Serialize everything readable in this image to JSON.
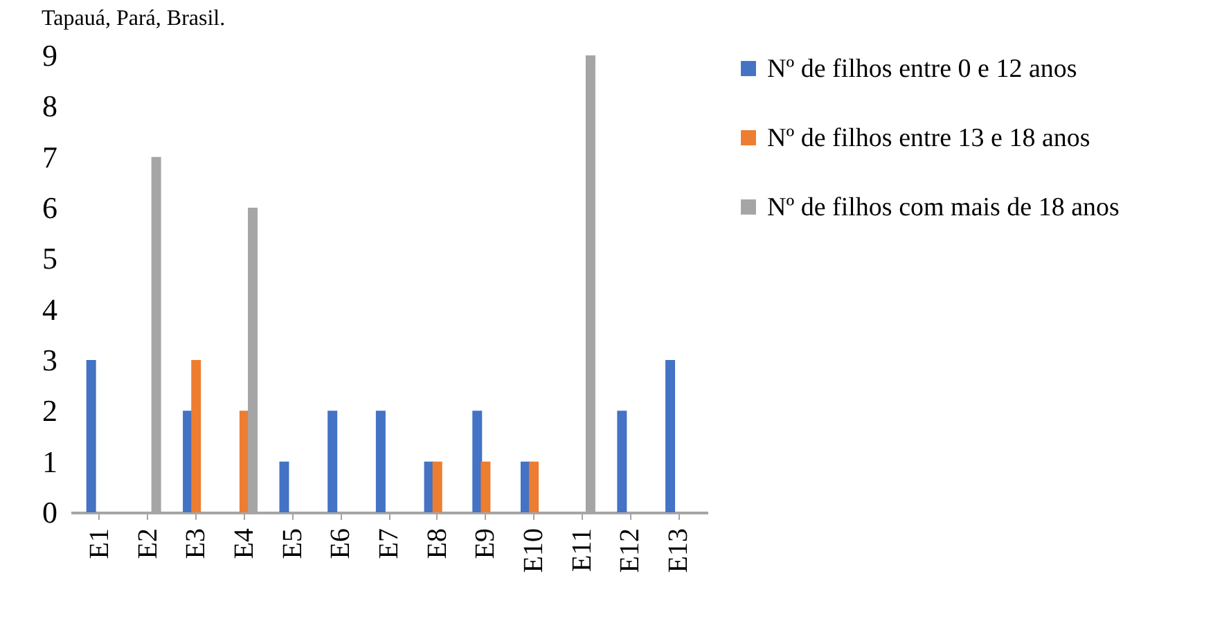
{
  "chart_data": {
    "type": "bar",
    "annotations": [
      "Tapauá, Pará, Brasil."
    ],
    "categories": [
      "E1",
      "E2",
      "E3",
      "E4",
      "E5",
      "E6",
      "E7",
      "E8",
      "E9",
      "E10",
      "E11",
      "E12",
      "E13"
    ],
    "series": [
      {
        "name": "Nº de filhos entre 0 e 12 anos",
        "color": "#4472c4",
        "values": [
          3,
          0,
          2,
          0,
          1,
          2,
          2,
          1,
          2,
          1,
          0,
          2,
          3
        ]
      },
      {
        "name": "Nº de filhos entre 13 e 18 anos",
        "color": "#ed7d31",
        "values": [
          0,
          0,
          3,
          2,
          0,
          0,
          0,
          1,
          1,
          1,
          0,
          0,
          0
        ]
      },
      {
        "name": "Nº de filhos com mais de 18 anos",
        "color": "#a5a5a5",
        "values": [
          0,
          7,
          0,
          6,
          0,
          0,
          0,
          0,
          0,
          0,
          9,
          0,
          0
        ]
      }
    ],
    "ylim": [
      0,
      9
    ],
    "yticks": [
      0,
      1,
      2,
      3,
      4,
      5,
      6,
      7,
      8,
      9
    ],
    "legend": "right"
  }
}
